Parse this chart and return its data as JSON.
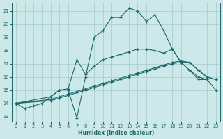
{
  "background_color": "#cce8e8",
  "grid_color": "#aacece",
  "line_color": "#1a6868",
  "xlabel": "Humidex (Indice chaleur)",
  "xlim": [
    -0.5,
    23.5
  ],
  "ylim": [
    12.6,
    21.6
  ],
  "yticks": [
    13,
    14,
    15,
    16,
    17,
    18,
    19,
    20,
    21
  ],
  "xticks": [
    0,
    1,
    2,
    3,
    4,
    5,
    6,
    7,
    8,
    9,
    10,
    11,
    12,
    13,
    14,
    15,
    16,
    17,
    18,
    19,
    20,
    21,
    22,
    23
  ],
  "s1x": [
    0,
    1,
    2,
    3,
    4,
    5,
    6,
    7,
    8,
    9,
    10,
    11,
    12,
    13,
    14,
    15,
    16,
    17,
    18,
    19,
    20,
    21,
    22
  ],
  "s1y": [
    14.0,
    13.6,
    13.8,
    14.0,
    14.5,
    15.0,
    15.0,
    12.9,
    16.0,
    19.0,
    19.5,
    20.5,
    20.5,
    21.2,
    21.0,
    20.2,
    20.7,
    19.5,
    18.1,
    17.1,
    16.5,
    15.8,
    15.8
  ],
  "s2x": [
    0,
    4,
    5,
    6,
    7,
    8,
    9,
    10,
    11,
    12,
    13,
    14,
    15,
    16,
    17,
    18,
    19,
    20,
    21,
    22,
    23
  ],
  "s2y": [
    14.0,
    14.2,
    14.4,
    14.6,
    14.8,
    15.0,
    15.2,
    15.4,
    15.6,
    15.8,
    16.0,
    16.2,
    16.4,
    16.6,
    16.8,
    17.0,
    17.1,
    17.1,
    16.5,
    16.0,
    15.8
  ],
  "s3x": [
    0,
    4,
    5,
    6,
    7,
    8,
    9,
    10,
    11,
    12,
    13,
    14,
    15,
    16,
    17,
    18,
    19,
    20,
    21,
    22,
    23
  ],
  "s3y": [
    14.0,
    14.3,
    14.5,
    14.7,
    14.9,
    15.1,
    15.3,
    15.5,
    15.7,
    15.9,
    16.1,
    16.3,
    16.5,
    16.7,
    16.9,
    17.1,
    17.2,
    17.1,
    16.5,
    16.0,
    15.8
  ],
  "s4x": [
    0,
    4,
    5,
    6,
    7,
    8,
    9,
    10,
    11,
    12,
    13,
    14,
    15,
    16,
    17,
    18,
    19,
    20,
    21,
    22,
    23
  ],
  "s4y": [
    14.0,
    14.5,
    15.0,
    15.1,
    17.3,
    16.2,
    16.8,
    17.3,
    17.5,
    17.7,
    17.9,
    18.1,
    18.1,
    18.0,
    17.8,
    18.1,
    17.1,
    16.5,
    16.0,
    15.8,
    15.0
  ]
}
